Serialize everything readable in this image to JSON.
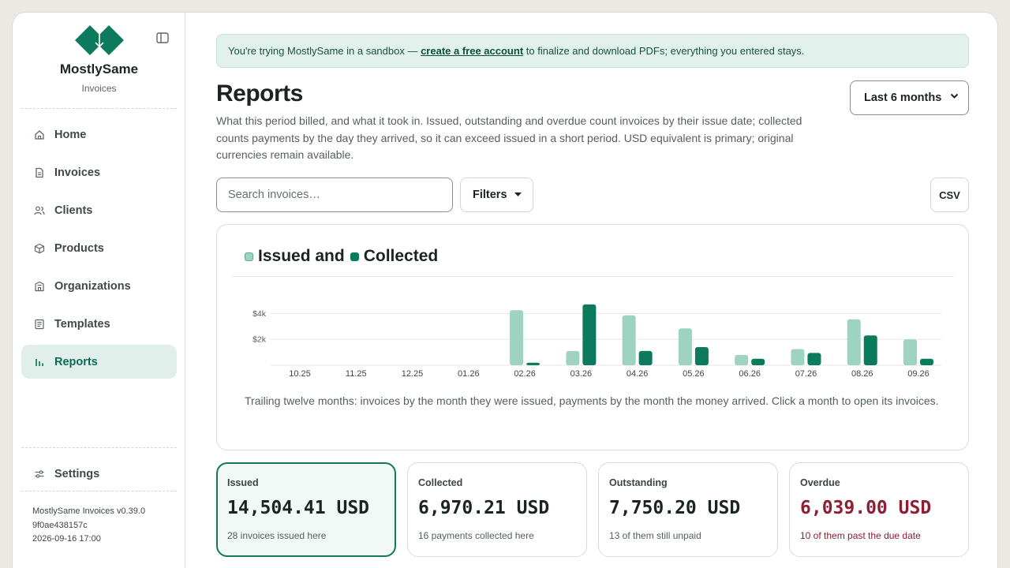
{
  "brand": {
    "name": "MostlySame",
    "subtitle": "Invoices"
  },
  "nav": [
    {
      "label": "Home",
      "icon": "home-icon",
      "active": false
    },
    {
      "label": "Invoices",
      "icon": "document-icon",
      "active": false
    },
    {
      "label": "Clients",
      "icon": "users-icon",
      "active": false
    },
    {
      "label": "Products",
      "icon": "box-icon",
      "active": false
    },
    {
      "label": "Organizations",
      "icon": "building-icon",
      "active": false
    },
    {
      "label": "Templates",
      "icon": "template-icon",
      "active": false
    },
    {
      "label": "Reports",
      "icon": "bar-chart-icon",
      "active": true
    }
  ],
  "settings_label": "Settings",
  "version": {
    "line1": "MostlySame Invoices v0.39.0",
    "line2": "9f0ae438157c",
    "line3": "2026-09-16 17:00"
  },
  "banner": {
    "before": "You're trying MostlySame in a sandbox — ",
    "link": "create a free account",
    "after": " to finalize and download PDFs; everything you entered stays."
  },
  "page": {
    "title": "Reports",
    "description": "What this period billed, and what it took in. Issued, outstanding and overdue count invoices by their issue date; collected counts payments by the day they arrived, so it can exceed issued in a short period. USD equivalent is primary; original currencies remain available.",
    "period": "Last 6 months"
  },
  "search": {
    "placeholder": "Search invoices…",
    "value": ""
  },
  "filters_label": "Filters",
  "csv_label": "CSV",
  "colors": {
    "accent": "#0a6b54",
    "issued": "#9ed3c1",
    "collected": "#0c7a5c",
    "overdue": "#8f1d33"
  },
  "chart_data": {
    "type": "bar",
    "title_parts": [
      "Issued and",
      "Collected"
    ],
    "categories": [
      "10.25",
      "11.25",
      "12.25",
      "01.26",
      "02.26",
      "03.26",
      "04.26",
      "05.26",
      "06.26",
      "07.26",
      "08.26",
      "09.26"
    ],
    "series": [
      {
        "name": "Issued",
        "values": [
          0,
          0,
          0,
          0,
          4250,
          1100,
          3850,
          2850,
          800,
          1250,
          3550,
          2000
        ]
      },
      {
        "name": "Collected",
        "values": [
          0,
          0,
          0,
          0,
          200,
          4700,
          1100,
          1400,
          500,
          950,
          2300,
          500
        ]
      }
    ],
    "yticks": [
      {
        "value": 2000,
        "label": "$2k"
      },
      {
        "value": 4000,
        "label": "$4k"
      }
    ],
    "ylim": [
      0,
      4750
    ],
    "grid": true,
    "caption": "Trailing twelve months: invoices by the month they were issued, payments by the month the money arrived. Click a month to open its invoices."
  },
  "stats": [
    {
      "label": "Issued",
      "value": "14,504.41 USD",
      "note": "28 invoices issued here",
      "selected": true,
      "alert": false
    },
    {
      "label": "Collected",
      "value": "6,970.21 USD",
      "note": "16 payments collected here",
      "selected": false,
      "alert": false
    },
    {
      "label": "Outstanding",
      "value": "7,750.20 USD",
      "note": "13 of them still unpaid",
      "selected": false,
      "alert": false
    },
    {
      "label": "Overdue",
      "value": "6,039.00 USD",
      "note": "10 of them past the due date",
      "selected": false,
      "alert": true
    }
  ]
}
